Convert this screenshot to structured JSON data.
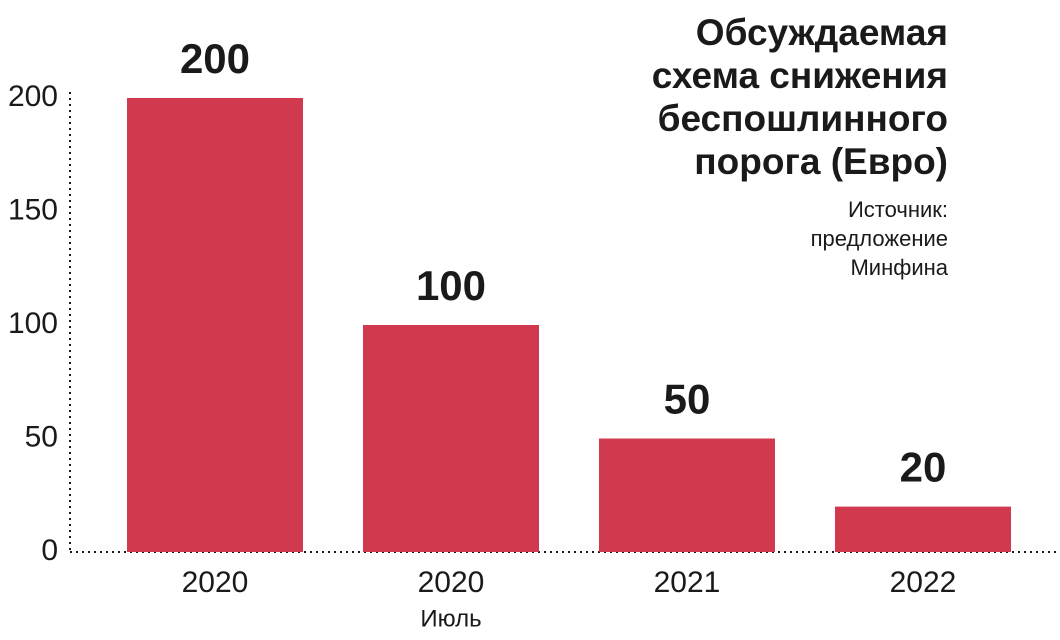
{
  "chart_data": {
    "type": "bar",
    "title": [
      "Обсуждаемая",
      "схема снижения",
      "беспошлинного",
      "порога (Евро)"
    ],
    "source": [
      "Источник:",
      "предложение",
      "Минфина"
    ],
    "categories": [
      "2020",
      "2020",
      "2021",
      "2022"
    ],
    "category_sublabels": [
      null,
      "Июль",
      null,
      null
    ],
    "values": [
      200,
      100,
      50,
      20
    ],
    "color": "#d0394e",
    "ylim": [
      0,
      200
    ],
    "yticks": [
      0,
      50,
      100,
      150,
      200
    ],
    "grid": false
  }
}
